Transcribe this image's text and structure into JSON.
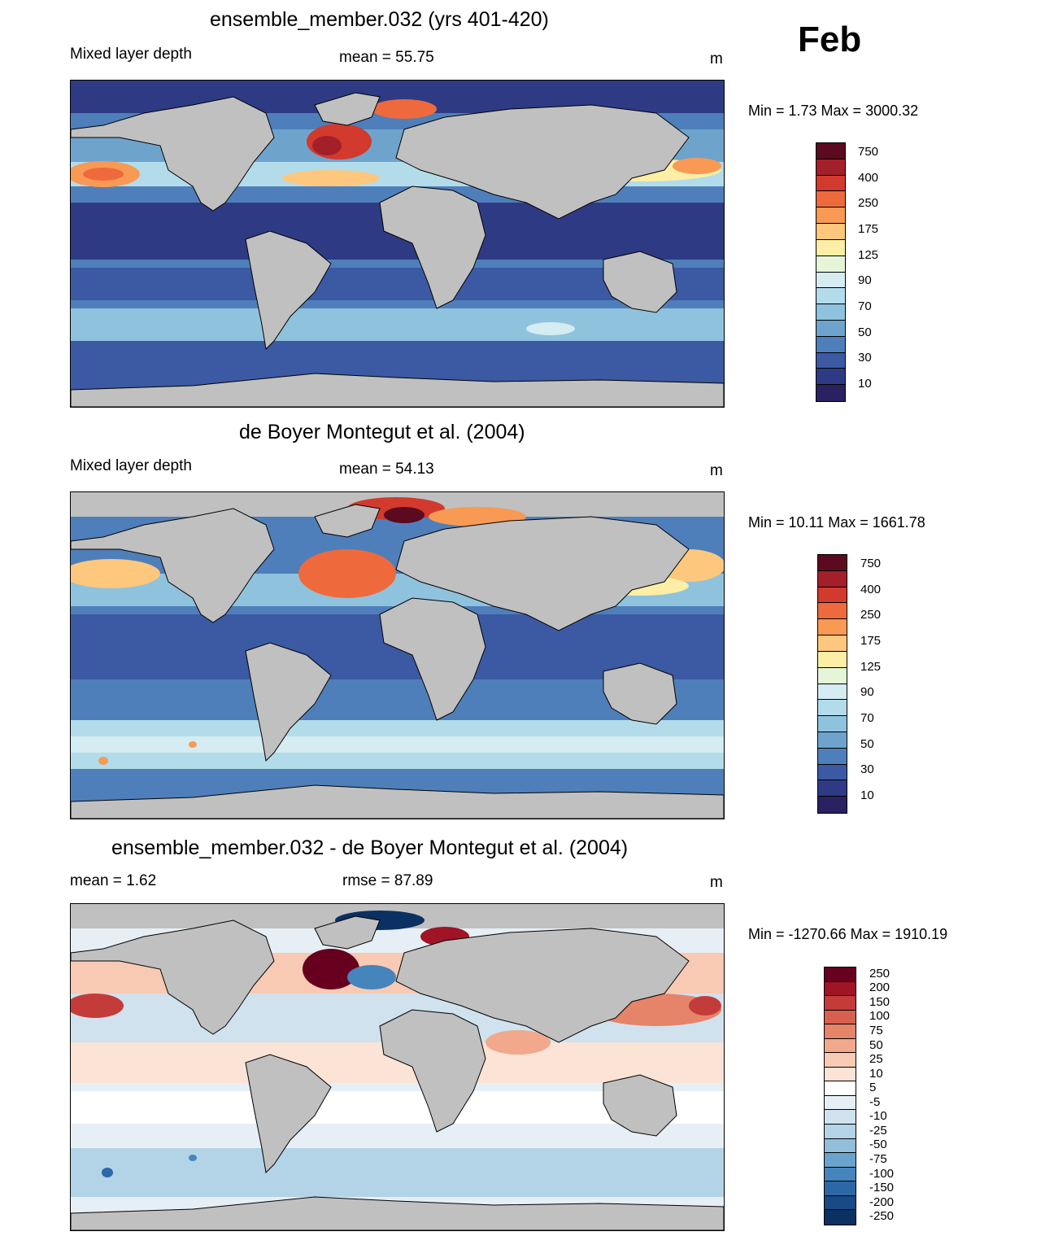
{
  "month": "Feb",
  "panels": [
    {
      "title": "ensemble_member.032 (yrs 401-420)",
      "left_label": "Mixed layer depth",
      "center_label": "mean =  55.75",
      "unit": "m",
      "minmax": "Min =   1.73 Max = 3000.32",
      "ticks": [
        "750",
        "400",
        "250",
        "175",
        "125",
        "90",
        "70",
        "50",
        "30",
        "10"
      ]
    },
    {
      "title": "de Boyer Montegut et al. (2004)",
      "left_label": "Mixed layer depth",
      "center_label": "mean =  54.13",
      "unit": "m",
      "minmax": "Min =  10.11 Max = 1661.78",
      "ticks": [
        "750",
        "400",
        "250",
        "175",
        "125",
        "90",
        "70",
        "50",
        "30",
        "10"
      ]
    },
    {
      "title": "ensemble_member.032 - de Boyer Montegut et al. (2004)",
      "left_label": "mean =   1.62",
      "center_label": "rmse =  87.89",
      "unit": "m",
      "minmax": "Min = -1270.66 Max = 1910.19",
      "ticks": [
        "250",
        "200",
        "150",
        "100",
        "75",
        "50",
        "25",
        "10",
        "5",
        "-5",
        "-10",
        "-25",
        "-50",
        "-75",
        "-100",
        "-150",
        "-200",
        "-250"
      ]
    }
  ],
  "colors": {
    "land": "#c0c0c0",
    "depth_scale": [
      "#5c0a1f",
      "#a3202a",
      "#d13a2c",
      "#ee6a3c",
      "#f89954",
      "#fdc77d",
      "#fdeea6",
      "#e6f4d8",
      "#d4ecf2",
      "#b3dcea",
      "#8fc3dd",
      "#6ea4cc",
      "#4f7fba",
      "#3b5aa3",
      "#2e3b84",
      "#2a2160"
    ],
    "diff_scale": [
      "#67001f",
      "#a01426",
      "#c43c3a",
      "#d8604e",
      "#e58469",
      "#f2a88c",
      "#f8c9b3",
      "#fbe3d6",
      "#ffffff",
      "#e6eff6",
      "#cfe2ee",
      "#b3d3e7",
      "#93bfdb",
      "#6aa4cc",
      "#4585bc",
      "#2c68a6",
      "#174a86",
      "#0a3162"
    ]
  }
}
